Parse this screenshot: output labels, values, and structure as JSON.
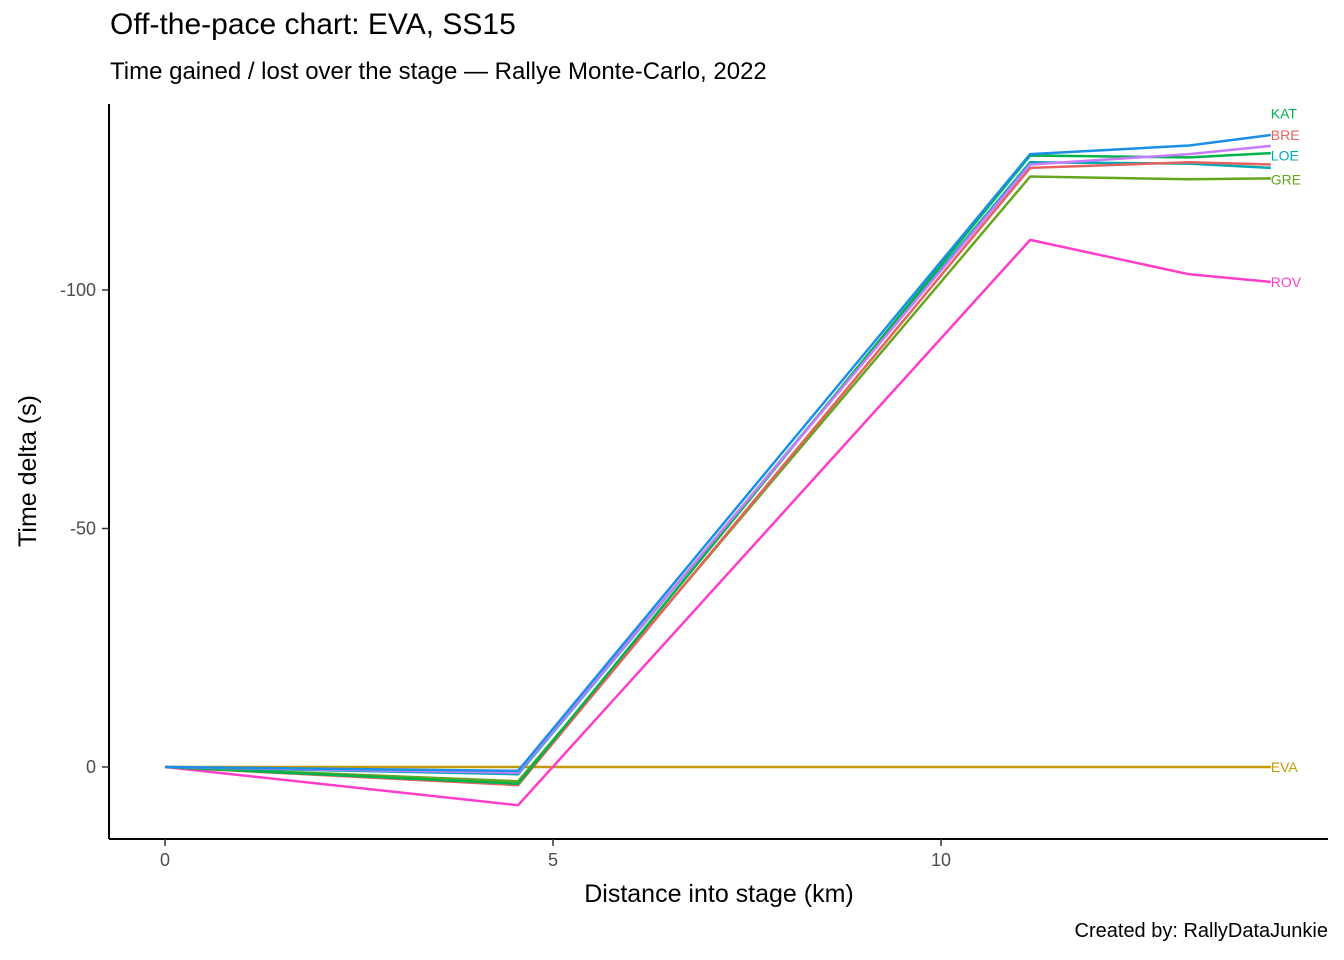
{
  "chart_data": {
    "type": "line",
    "title": "Off-the-pace chart: EVA, SS15",
    "subtitle": "Time gained / lost over the stage — Rallye Monte-Carlo, 2022",
    "caption": "Created by: RallyDataJunkie",
    "xlabel": "Distance into stage (km)",
    "ylabel": "Time delta (s)",
    "xlim": [
      -0.7,
      14.95
    ],
    "ylim": [
      15,
      -139
    ],
    "y_reversed": true,
    "grid": false,
    "x_ticks": [
      {
        "value": 0,
        "label": "0"
      },
      {
        "value": 5,
        "label": "5"
      },
      {
        "value": 10,
        "label": "10"
      }
    ],
    "y_ticks": [
      {
        "value": 0,
        "label": "0"
      },
      {
        "value": -50,
        "label": "-50"
      },
      {
        "value": -100,
        "label": "-100"
      }
    ],
    "series": [
      {
        "name": "EVA",
        "color": "#C49A00",
        "x": [
          0,
          4.55,
          11.15,
          13.2,
          14.25
        ],
        "y": [
          0,
          0,
          0,
          0,
          0
        ]
      },
      {
        "name": "ROV",
        "color": "#FF3DC8",
        "x": [
          0,
          4.55,
          11.15,
          13.2,
          14.25
        ],
        "y": [
          0,
          8,
          -110.5,
          -103.3,
          -101.7
        ]
      },
      {
        "name": "GRE",
        "color": "#66A61E",
        "x": [
          0,
          4.55,
          11.15,
          13.2,
          14.25
        ],
        "y": [
          0,
          3,
          -123.8,
          -123.2,
          -123.4
        ]
      },
      {
        "name": "LOE",
        "color": "#00A9B4",
        "x": [
          0,
          4.55,
          11.15,
          13.2,
          14.25
        ],
        "y": [
          0,
          1.5,
          -126.8,
          -126.5,
          -125.6
        ]
      },
      {
        "name": "BRE",
        "color": "#E7625F",
        "x": [
          0,
          4.55,
          11.15,
          13.2,
          14.25
        ],
        "y": [
          0,
          3.8,
          -125.6,
          -126.8,
          -126.3
        ]
      },
      {
        "name": "KAT",
        "color": "#00B34A",
        "x": [
          0,
          4.55,
          11.15,
          13.2,
          14.25
        ],
        "y": [
          0,
          3.5,
          -128.2,
          -127.8,
          -128.7
        ]
      },
      {
        "name": "",
        "color": "#C77CFF",
        "x": [
          0,
          4.55,
          11.15,
          13.2,
          14.25
        ],
        "y": [
          0,
          1.2,
          -126.3,
          -128.5,
          -130.2
        ]
      },
      {
        "name": "",
        "color": "#1A8FE8",
        "x": [
          0,
          4.55,
          11.15,
          13.2,
          14.25
        ],
        "y": [
          0,
          0.8,
          -128.5,
          -130.3,
          -132.5
        ]
      }
    ],
    "end_labels": [
      {
        "text": "KAT",
        "color": "#00B34A",
        "y": -137
      },
      {
        "text": "BRE",
        "color": "#E7625F",
        "y": -132.5
      },
      {
        "text": "LOE",
        "color": "#00A9B4",
        "y": -128.2
      },
      {
        "text": "GRE",
        "color": "#66A61E",
        "y": -123.2
      },
      {
        "text": "ROV",
        "color": "#FF3DC8",
        "y": -101.7
      },
      {
        "text": "EVA",
        "color": "#C49A00",
        "y": 0
      }
    ]
  }
}
